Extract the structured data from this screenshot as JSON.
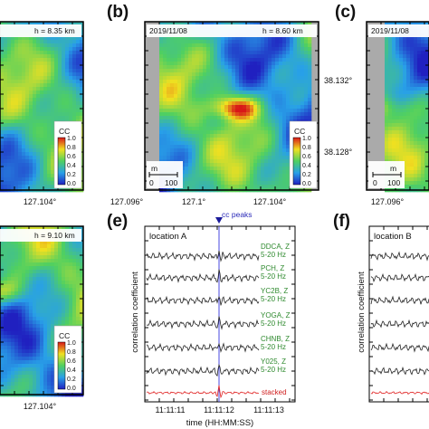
{
  "chart_data": [
    {
      "type": "heatmap",
      "panel": "a",
      "depth_label": "h = 8.35 km",
      "x_tick_labels": [
        "127.104°"
      ],
      "colorbar": {
        "title": "CC",
        "ticks": [
          "1.0",
          "0.8",
          "0.6",
          "0.4",
          "0.2",
          "0.0"
        ],
        "range": [
          0,
          1
        ]
      }
    },
    {
      "type": "heatmap",
      "panel": "b",
      "panel_label": "(b)",
      "date": "2019/11/08",
      "depth_label": "h = 8.60 km",
      "x_tick_labels": [
        "127.096°",
        "127.1°",
        "127.104°"
      ],
      "y_tick_labels": [
        "38.132°",
        "38.128°"
      ],
      "scale_bar": {
        "unit": "m",
        "labels": [
          "0",
          "100"
        ]
      },
      "colorbar": {
        "title": "CC",
        "ticks": [
          "1.0",
          "0.8",
          "0.6",
          "0.4",
          "0.2",
          "0.0"
        ],
        "range": [
          0,
          1
        ]
      }
    },
    {
      "type": "heatmap",
      "panel": "c",
      "panel_label": "(c)",
      "date": "2019/11/08",
      "x_tick_labels": [
        "127.096°"
      ],
      "scale_bar": {
        "unit": "m",
        "labels": [
          "0",
          "100"
        ]
      }
    },
    {
      "type": "heatmap",
      "panel": "d",
      "depth_label": "h = 9.10 km",
      "x_tick_labels": [
        "127.104°"
      ],
      "colorbar": {
        "title": "CC",
        "ticks": [
          "1.0",
          "0.8",
          "0.6",
          "0.4",
          "0.2",
          "0.0"
        ],
        "range": [
          0,
          1
        ]
      }
    },
    {
      "type": "line",
      "panel": "e",
      "panel_label": "(e)",
      "location": "location A",
      "peak_label": "cc peaks",
      "xlabel": "time (HH:MM:SS)",
      "ylabel": "correlation coefficient",
      "x_tick_labels": [
        "11:11:11",
        "11:11:12",
        "11:11:13"
      ],
      "series": [
        {
          "name": "DDCA, Z",
          "band": "5-20 Hz"
        },
        {
          "name": "PCH, Z",
          "band": "5-20 Hz"
        },
        {
          "name": "YC2B, Z",
          "band": "5-20 Hz"
        },
        {
          "name": "YOGA, Z",
          "band": "5-20 Hz"
        },
        {
          "name": "CHNB, Z",
          "band": "5-20 Hz"
        },
        {
          "name": "Y025, Z",
          "band": "5-20 Hz"
        },
        {
          "name": "stacked",
          "band": ""
        }
      ]
    },
    {
      "type": "line",
      "panel": "f",
      "panel_label": "(f)",
      "location": "location B",
      "ylabel": "correlation coefficient"
    }
  ]
}
